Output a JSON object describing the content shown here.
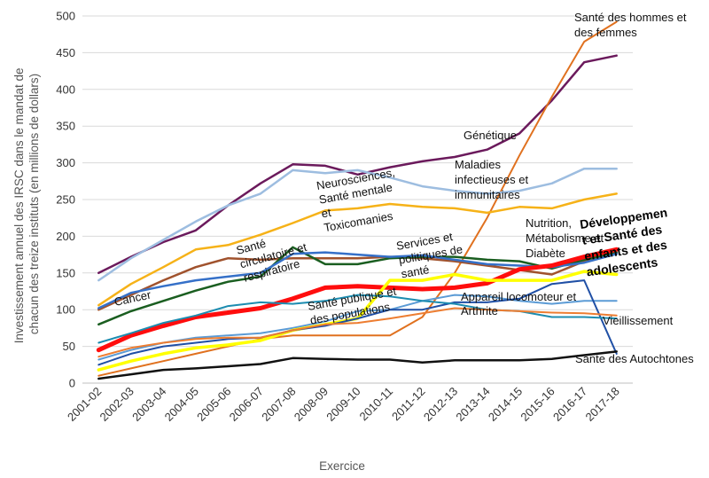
{
  "chart_data": {
    "type": "line",
    "title": "",
    "xlabel": "Exercice",
    "ylabel_lines": [
      "Investissement annuel des IRSC dans le mandat de",
      "chacun des treize instituts  (en millions de dollars)"
    ],
    "ylim": [
      0,
      500
    ],
    "yticks": [
      "0",
      "50",
      "100",
      "150",
      "200",
      "250",
      "300",
      "350",
      "400",
      "450",
      "500"
    ],
    "categories": [
      "2001-02",
      "2002-03",
      "2003-04",
      "2004-05",
      "2005-06",
      "2006-07",
      "2007-08",
      "2008-09",
      "2009-10",
      "2010-11",
      "2011-12",
      "2012-13",
      "2013-14",
      "2014-15",
      "2015-16",
      "2016-17",
      "2017-18"
    ],
    "grid": true,
    "series": [
      {
        "color": "#6b1a5c",
        "width": 2.5,
        "values": [
          150,
          172,
          192,
          208,
          242,
          272,
          298,
          296,
          284,
          294,
          302,
          308,
          318,
          340,
          385,
          437,
          446
        ]
      },
      {
        "color": "#e0711f",
        "width": 2,
        "values": [
          10,
          20,
          30,
          40,
          50,
          60,
          65,
          65,
          65,
          65,
          90,
          150,
          225,
          310,
          390,
          465,
          492
        ]
      },
      {
        "color": "#9dbde0",
        "width": 2.5,
        "values": [
          140,
          170,
          195,
          220,
          242,
          258,
          290,
          286,
          290,
          280,
          268,
          262,
          258,
          262,
          272,
          292,
          292
        ]
      },
      {
        "color": "#f6b218",
        "width": 2.5,
        "values": [
          106,
          135,
          158,
          182,
          188,
          202,
          218,
          235,
          238,
          244,
          240,
          238,
          232,
          240,
          238,
          250,
          258
        ]
      },
      {
        "color": "#a0522d",
        "width": 2.5,
        "values": [
          100,
          120,
          140,
          158,
          170,
          168,
          170,
          170,
          170,
          172,
          170,
          166,
          160,
          154,
          148,
          166,
          176
        ]
      },
      {
        "color": "#1a5e20",
        "width": 2.5,
        "values": [
          80,
          98,
          112,
          126,
          138,
          145,
          185,
          162,
          162,
          170,
          172,
          172,
          168,
          166,
          156,
          168,
          178
        ]
      },
      {
        "color": "#3570c8",
        "width": 2.5,
        "values": [
          102,
          123,
          132,
          140,
          145,
          150,
          176,
          178,
          175,
          172,
          174,
          168,
          162,
          160,
          158,
          164,
          176
        ]
      },
      {
        "color": "#ff0d0d",
        "width": 5,
        "values": [
          45,
          65,
          78,
          90,
          96,
          102,
          115,
          130,
          132,
          130,
          128,
          130,
          136,
          155,
          160,
          172,
          182
        ]
      },
      {
        "color": "#5b9bd5",
        "width": 2,
        "values": [
          32,
          45,
          55,
          62,
          65,
          68,
          75,
          84,
          98,
          100,
          112,
          120,
          118,
          112,
          108,
          112,
          112
        ]
      },
      {
        "color": "#ffff00",
        "width": 3.5,
        "values": [
          18,
          30,
          40,
          48,
          52,
          58,
          72,
          80,
          88,
          140,
          140,
          148,
          140,
          140,
          140,
          152,
          148
        ]
      },
      {
        "color": "#1f4fa5",
        "width": 2,
        "values": [
          25,
          40,
          50,
          55,
          60,
          62,
          72,
          78,
          88,
          100,
          100,
          110,
          110,
          115,
          135,
          140,
          40
        ]
      },
      {
        "color": "#1c8cb0",
        "width": 2,
        "values": [
          55,
          68,
          82,
          92,
          105,
          110,
          108,
          112,
          120,
          118,
          112,
          108,
          100,
          98,
          90,
          90,
          88
        ]
      },
      {
        "color": "#ed7d31",
        "width": 2,
        "values": [
          36,
          48,
          55,
          60,
          62,
          62,
          72,
          80,
          82,
          88,
          95,
          102,
          100,
          98,
          96,
          95,
          92
        ]
      },
      {
        "color": "#111111",
        "width": 2.5,
        "values": [
          6,
          12,
          18,
          20,
          23,
          26,
          34,
          33,
          32,
          32,
          28,
          31,
          31,
          31,
          33,
          38,
          43
        ]
      }
    ],
    "annotations": [
      {
        "lines": [
          "Santé des hommes et",
          "des femmes"
        ],
        "bold": false
      },
      {
        "lines": [
          "Génétique"
        ],
        "bold": false
      },
      {
        "lines": [
          "Maladies",
          "infectieuses et",
          "immunitaires"
        ],
        "bold": false
      },
      {
        "lines": [
          "Neurosciences,",
          "Santé mentale",
          "et",
          "Toxicomanies"
        ],
        "bold": false
      },
      {
        "lines": [
          "Nutrition,",
          "Métabolisme et",
          "Diabète"
        ],
        "bold": false
      },
      {
        "lines": [
          "Développemen",
          "t et Santé des",
          "enfants et des",
          "adolescents"
        ],
        "bold": true
      },
      {
        "lines": [
          "Santé",
          "circulatoire et",
          "respiratoire"
        ],
        "bold": false
      },
      {
        "lines": [
          "Cancer"
        ],
        "bold": false
      },
      {
        "lines": [
          "Services et",
          "politiques de",
          "santé"
        ],
        "bold": false
      },
      {
        "lines": [
          "Appareil locomoteur et",
          "Arthrite"
        ],
        "bold": false
      },
      {
        "lines": [
          "Santé publique et",
          "des populations"
        ],
        "bold": false
      },
      {
        "lines": [
          "Vieillissement"
        ],
        "bold": false
      },
      {
        "lines": [
          "Sante des Autochtones"
        ],
        "bold": false
      }
    ]
  }
}
